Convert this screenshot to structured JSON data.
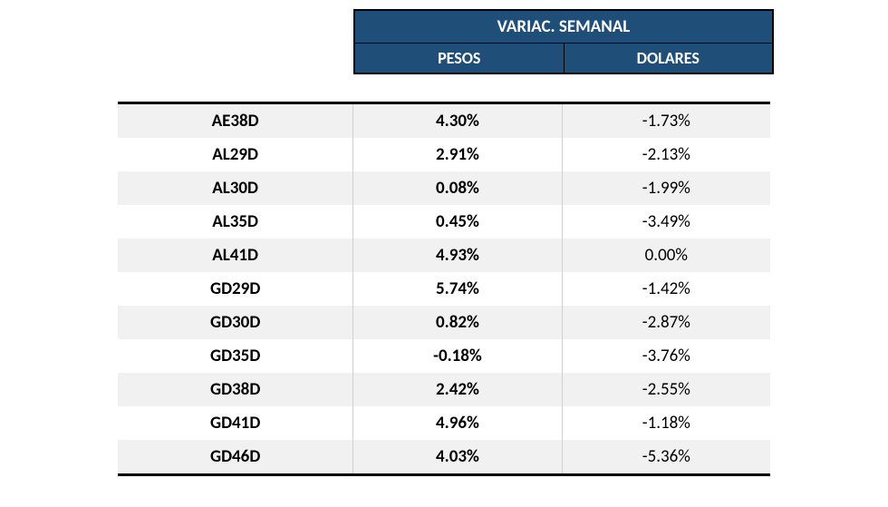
{
  "header": {
    "title": "VARIAC. SEMANAL",
    "col_pesos": "PESOS",
    "col_dolares": "DOLARES"
  },
  "style": {
    "header_bg": "#1f4e79",
    "header_text": "#ffffff",
    "row_odd_bg": "#f1f1f1",
    "row_even_bg": "#ffffff",
    "border_color": "#000000",
    "cell_border": "#cfcfcf",
    "ticker_fontweight": "bold",
    "pesos_fontweight": "bold",
    "dolares_fontweight": "normal",
    "fontsize_header_title": 19,
    "fontsize_header_sub": 18,
    "fontsize_cell": 19
  },
  "rows": [
    {
      "ticker": "AE38D",
      "pesos": "4.30%",
      "dolares": "-1.73%"
    },
    {
      "ticker": "AL29D",
      "pesos": "2.91%",
      "dolares": "-2.13%"
    },
    {
      "ticker": "AL30D",
      "pesos": "0.08%",
      "dolares": "-1.99%"
    },
    {
      "ticker": "AL35D",
      "pesos": "0.45%",
      "dolares": "-3.49%"
    },
    {
      "ticker": "AL41D",
      "pesos": "4.93%",
      "dolares": "0.00%"
    },
    {
      "ticker": "GD29D",
      "pesos": "5.74%",
      "dolares": "-1.42%"
    },
    {
      "ticker": "GD30D",
      "pesos": "0.82%",
      "dolares": "-2.87%"
    },
    {
      "ticker": "GD35D",
      "pesos": "-0.18%",
      "dolares": "-3.76%"
    },
    {
      "ticker": "GD38D",
      "pesos": "2.42%",
      "dolares": "-2.55%"
    },
    {
      "ticker": "GD41D",
      "pesos": "4.96%",
      "dolares": "-1.18%"
    },
    {
      "ticker": "GD46D",
      "pesos": "4.03%",
      "dolares": "-5.36%"
    }
  ]
}
